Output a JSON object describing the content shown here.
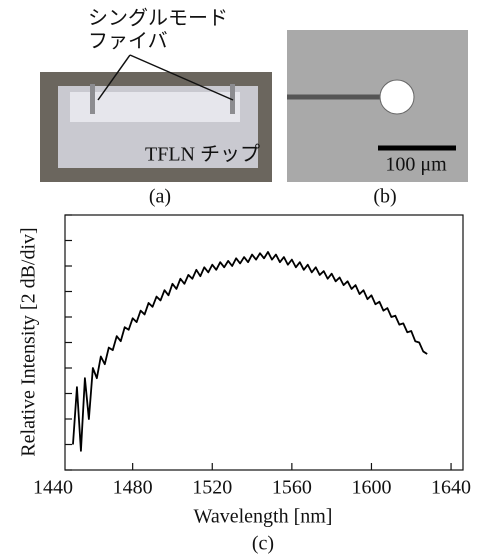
{
  "panels": {
    "a": {
      "label": "(a)",
      "annotation_lines": [
        "シングルモード",
        "ファイバ"
      ],
      "chip_label": "TFLN チップ"
    },
    "b": {
      "label": "(b)",
      "scale_bar": "100 μm"
    }
  },
  "chart_data": {
    "type": "line",
    "label": "(c)",
    "x_label": "Wavelength [nm]",
    "y_label": "Relative Intensity [2 dB/div]",
    "xlim": [
      1446,
      1646
    ],
    "xticks": [
      1440,
      1480,
      1520,
      1560,
      1600,
      1640
    ],
    "ylim": [
      0,
      20
    ],
    "yticks": [
      0,
      2,
      4,
      6,
      8,
      10,
      12,
      14,
      16,
      18,
      20
    ],
    "color": "#000000",
    "x": [
      1450,
      1452,
      1454,
      1456,
      1458,
      1460,
      1462,
      1464,
      1466,
      1468,
      1470,
      1472,
      1474,
      1476,
      1478,
      1480,
      1482,
      1484,
      1486,
      1488,
      1490,
      1492,
      1494,
      1496,
      1498,
      1500,
      1502,
      1504,
      1506,
      1508,
      1510,
      1512,
      1514,
      1516,
      1518,
      1520,
      1522,
      1524,
      1526,
      1528,
      1530,
      1532,
      1534,
      1536,
      1538,
      1540,
      1542,
      1544,
      1546,
      1548,
      1550,
      1552,
      1554,
      1556,
      1558,
      1560,
      1562,
      1564,
      1566,
      1568,
      1570,
      1572,
      1574,
      1576,
      1578,
      1580,
      1582,
      1584,
      1586,
      1588,
      1590,
      1592,
      1594,
      1596,
      1598,
      1600,
      1602,
      1604,
      1606,
      1608,
      1610,
      1612,
      1614,
      1616,
      1618,
      1620,
      1622,
      1624,
      1626,
      1628
    ],
    "values": [
      2.0,
      6.5,
      1.5,
      7.2,
      4.0,
      8.0,
      7.2,
      8.9,
      8.3,
      9.6,
      9.4,
      10.5,
      10.1,
      11.2,
      11.0,
      11.9,
      11.6,
      12.5,
      12.2,
      13.1,
      12.8,
      13.6,
      13.3,
      14.1,
      13.7,
      14.6,
      14.2,
      15.0,
      14.6,
      15.3,
      15.0,
      15.7,
      15.2,
      15.9,
      15.5,
      16.1,
      15.7,
      16.3,
      15.9,
      16.4,
      16.0,
      16.6,
      16.2,
      16.7,
      16.3,
      16.9,
      16.5,
      17.0,
      16.6,
      17.1,
      16.5,
      16.9,
      16.3,
      16.7,
      16.1,
      16.5,
      15.9,
      16.3,
      15.7,
      16.1,
      15.5,
      15.9,
      15.3,
      15.6,
      15.0,
      15.4,
      14.8,
      15.1,
      14.5,
      14.8,
      14.2,
      14.5,
      13.8,
      14.1,
      13.4,
      13.7,
      13.0,
      13.2,
      12.5,
      12.7,
      12.0,
      12.1,
      11.4,
      11.5,
      10.8,
      10.9,
      10.1,
      10.0,
      9.3,
      9.1
    ]
  }
}
